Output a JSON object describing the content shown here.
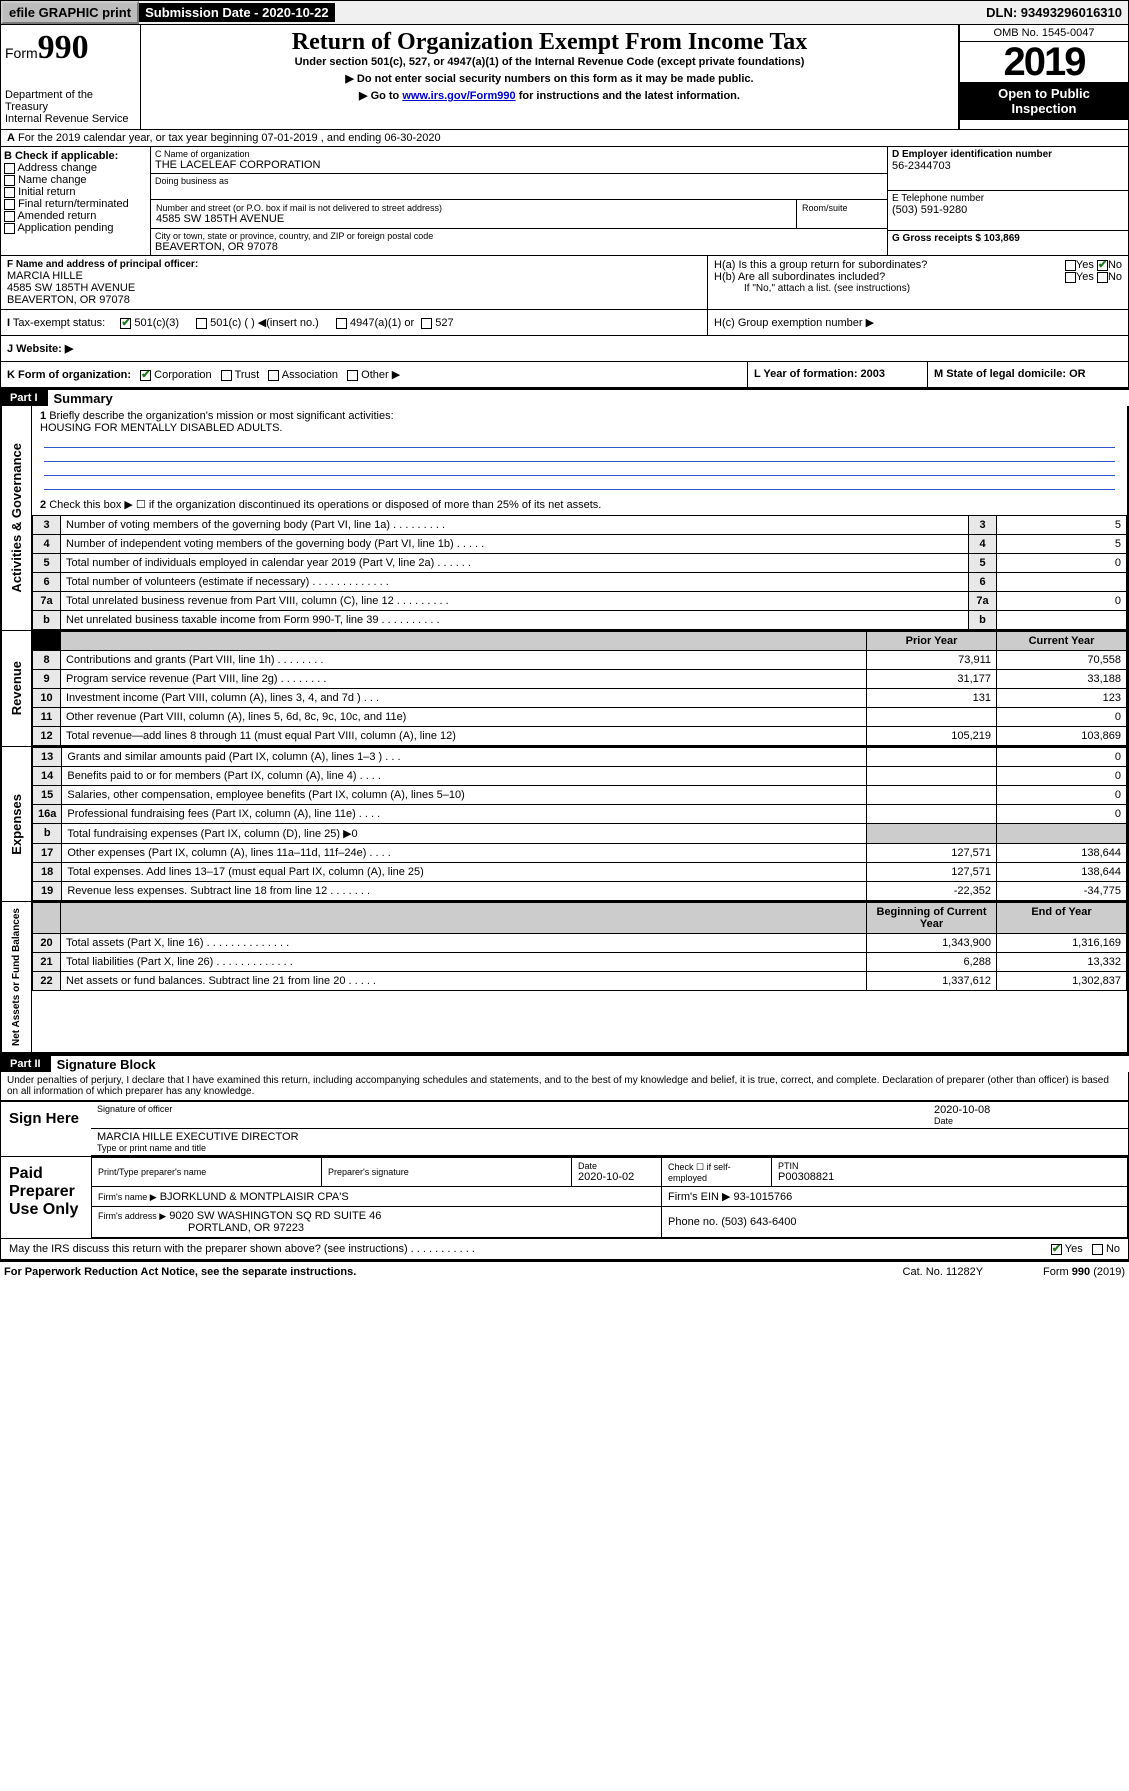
{
  "topbar": {
    "efile": "efile GRAPHIC print",
    "subdate_label": "Submission Date - 2020-10-22",
    "dln": "DLN: 93493296016310"
  },
  "header": {
    "form_label": "Form",
    "form_no": "990",
    "dept": "Department of the Treasury\nInternal Revenue Service",
    "title": "Return of Organization Exempt From Income Tax",
    "sub1": "Under section 501(c), 527, or 4947(a)(1) of the Internal Revenue Code (except private foundations)",
    "sub2": "▶ Do not enter social security numbers on this form as it may be made public.",
    "sub3_pre": "▶ Go to ",
    "sub3_link": "www.irs.gov/Form990",
    "sub3_post": " for instructions and the latest information.",
    "omb": "OMB No. 1545-0047",
    "year": "2019",
    "open": "Open to Public Inspection"
  },
  "A": {
    "text": "For the 2019 calendar year, or tax year beginning 07-01-2019    , and ending 06-30-2020"
  },
  "B": {
    "label": "B Check if applicable:",
    "opts": [
      "Address change",
      "Name change",
      "Initial return",
      "Final return/terminated",
      "Amended return",
      "Application pending"
    ]
  },
  "C": {
    "name_lbl": "C Name of organization",
    "name": "THE LACELEAF CORPORATION",
    "dba_lbl": "Doing business as",
    "addr_lbl": "Number and street (or P.O. box if mail is not delivered to street address)",
    "room_lbl": "Room/suite",
    "addr": "4585 SW 185TH AVENUE",
    "city_lbl": "City or town, state or province, country, and ZIP or foreign postal code",
    "city": "BEAVERTON, OR  97078"
  },
  "D": {
    "lbl": "D Employer identification number",
    "val": "56-2344703"
  },
  "E": {
    "lbl": "E Telephone number",
    "val": "(503) 591-9280"
  },
  "G": {
    "lbl": "G Gross receipts $ 103,869"
  },
  "F": {
    "lbl": "F  Name and address of principal officer:",
    "name": "MARCIA HILLE",
    "addr1": "4585 SW 185TH AVENUE",
    "addr2": "BEAVERTON, OR  97078"
  },
  "H": {
    "a": "H(a)  Is this a group return for subordinates?",
    "b": "H(b)  Are all subordinates included?",
    "bnote": "If \"No,\" attach a list. (see instructions)",
    "c": "H(c)  Group exemption number ▶",
    "yes": "Yes",
    "no": "No"
  },
  "I": {
    "lbl": "I  Tax-exempt status:",
    "o1": "501(c)(3)",
    "o2": "501(c) (  ) ◀(insert no.)",
    "o3": "4947(a)(1) or",
    "o4": "527"
  },
  "J": {
    "lbl": "J  Website: ▶"
  },
  "K": {
    "lbl": "K Form of organization:",
    "o1": "Corporation",
    "o2": "Trust",
    "o3": "Association",
    "o4": "Other ▶"
  },
  "L": {
    "lbl": "L Year of formation: 2003"
  },
  "M": {
    "lbl": "M State of legal domicile: OR"
  },
  "part1": {
    "hdr": "Part I",
    "title": "Summary"
  },
  "summary": {
    "q1": "Briefly describe the organization's mission or most significant activities:",
    "mission": "HOUSING FOR MENTALLY DISABLED ADULTS.",
    "q2": "Check this box ▶ ☐  if the organization discontinued its operations or disposed of more than 25% of its net assets.",
    "rows_gov": [
      {
        "n": "3",
        "t": "Number of voting members of the governing body (Part VI, line 1a)   .    .    .    .    .    .    .    .    .",
        "v": "5"
      },
      {
        "n": "4",
        "t": "Number of independent voting members of the governing body (Part VI, line 1b)    .    .    .    .    .",
        "v": "5"
      },
      {
        "n": "5",
        "t": "Total number of individuals employed in calendar year 2019 (Part V, line 2a)    .    .    .    .    .    .",
        "v": "0"
      },
      {
        "n": "6",
        "t": "Total number of volunteers (estimate if necessary)   .    .    .    .    .    .    .    .    .    .    .    .    .",
        "v": ""
      },
      {
        "n": "7a",
        "t": "Total unrelated business revenue from Part VIII, column (C), line 12   .    .    .    .    .    .    .    .    .",
        "v": "0"
      },
      {
        "n": "b",
        "t": "Net unrelated business taxable income from Form 990-T, line 39   .    .    .    .    .    .    .    .    .    .",
        "v": ""
      }
    ],
    "col_prior": "Prior Year",
    "col_curr": "Current Year",
    "rows_rev": [
      {
        "n": "8",
        "t": "Contributions and grants (Part VIII, line 1h)   .    .    .    .    .    .    .    .",
        "p": "73,911",
        "c": "70,558"
      },
      {
        "n": "9",
        "t": "Program service revenue (Part VIII, line 2g)    .    .    .    .    .    .    .    .",
        "p": "31,177",
        "c": "33,188"
      },
      {
        "n": "10",
        "t": "Investment income (Part VIII, column (A), lines 3, 4, and 7d )    .    .    .",
        "p": "131",
        "c": "123"
      },
      {
        "n": "11",
        "t": "Other revenue (Part VIII, column (A), lines 5, 6d, 8c, 9c, 10c, and 11e)",
        "p": "",
        "c": "0"
      },
      {
        "n": "12",
        "t": "Total revenue—add lines 8 through 11 (must equal Part VIII, column (A), line 12)",
        "p": "105,219",
        "c": "103,869"
      }
    ],
    "rows_exp": [
      {
        "n": "13",
        "t": "Grants and similar amounts paid (Part IX, column (A), lines 1–3 )    .    .    .",
        "p": "",
        "c": "0"
      },
      {
        "n": "14",
        "t": "Benefits paid to or for members (Part IX, column (A), line 4)    .    .    .    .",
        "p": "",
        "c": "0"
      },
      {
        "n": "15",
        "t": "Salaries, other compensation, employee benefits (Part IX, column (A), lines 5–10)",
        "p": "",
        "c": "0"
      },
      {
        "n": "16a",
        "t": "Professional fundraising fees (Part IX, column (A), line 11e)    .    .    .    .",
        "p": "",
        "c": "0"
      },
      {
        "n": "b",
        "t": "Total fundraising expenses (Part IX, column (D), line 25) ▶0",
        "p": "—",
        "c": "—"
      },
      {
        "n": "17",
        "t": "Other expenses (Part IX, column (A), lines 11a–11d, 11f–24e)    .    .    .    .",
        "p": "127,571",
        "c": "138,644"
      },
      {
        "n": "18",
        "t": "Total expenses. Add lines 13–17 (must equal Part IX, column (A), line 25)",
        "p": "127,571",
        "c": "138,644"
      },
      {
        "n": "19",
        "t": "Revenue less expenses. Subtract line 18 from line 12   .    .    .    .    .    .    .",
        "p": "-22,352",
        "c": "-34,775"
      }
    ],
    "col_beg": "Beginning of Current Year",
    "col_end": "End of Year",
    "rows_na": [
      {
        "n": "20",
        "t": "Total assets (Part X, line 16)   .    .    .    .    .    .    .    .    .    .    .    .    .    .",
        "p": "1,343,900",
        "c": "1,316,169"
      },
      {
        "n": "21",
        "t": "Total liabilities (Part X, line 26)   .    .    .    .    .    .    .    .    .    .    .    .    .",
        "p": "6,288",
        "c": "13,332"
      },
      {
        "n": "22",
        "t": "Net assets or fund balances. Subtract line 21 from line 20    .    .    .    .    .",
        "p": "1,337,612",
        "c": "1,302,837"
      }
    ],
    "band_gov": "Activities & Governance",
    "band_rev": "Revenue",
    "band_exp": "Expenses",
    "band_na": "Net Assets or Fund Balances"
  },
  "part2": {
    "hdr": "Part II",
    "title": "Signature Block"
  },
  "sig": {
    "perjury": "Under penalties of perjury, I declare that I have examined this return, including accompanying schedules and statements, and to the best of my knowledge and belief, it is true, correct, and complete. Declaration of preparer (other than officer) is based on all information of which preparer has any knowledge.",
    "sign_here": "Sign Here",
    "sig_officer": "Signature of officer",
    "date1": "2020-10-08",
    "date_lbl": "Date",
    "name_title": "MARCIA HILLE  EXECUTIVE DIRECTOR",
    "type_lbl": "Type or print name and title"
  },
  "paid": {
    "label": "Paid Preparer Use Only",
    "h1": "Print/Type preparer's name",
    "h2": "Preparer's signature",
    "h3": "Date",
    "date": "2020-10-02",
    "h4_pre": "Check ☐ if self-employed",
    "ptin_lbl": "PTIN",
    "ptin": "P00308821",
    "firm_lbl": "Firm's name     ▶",
    "firm": "BJORKLUND & MONTPLAISIR CPA'S",
    "ein_lbl": "Firm's EIN ▶ 93-1015766",
    "addr_lbl": "Firm's address ▶",
    "addr1": "9020 SW WASHINGTON SQ RD SUITE 46",
    "addr2": "PORTLAND, OR  97223",
    "phone_lbl": "Phone no. (503) 643-6400"
  },
  "discuss": {
    "q": "May the IRS discuss this return with the preparer shown above? (see instructions)    .    .    .    .    .    .    .    .    .    .    .",
    "yes": "Yes",
    "no": "No"
  },
  "footer": {
    "l": "For Paperwork Reduction Act Notice, see the separate instructions.",
    "m": "Cat. No. 11282Y",
    "r": "Form 990 (2019)"
  }
}
